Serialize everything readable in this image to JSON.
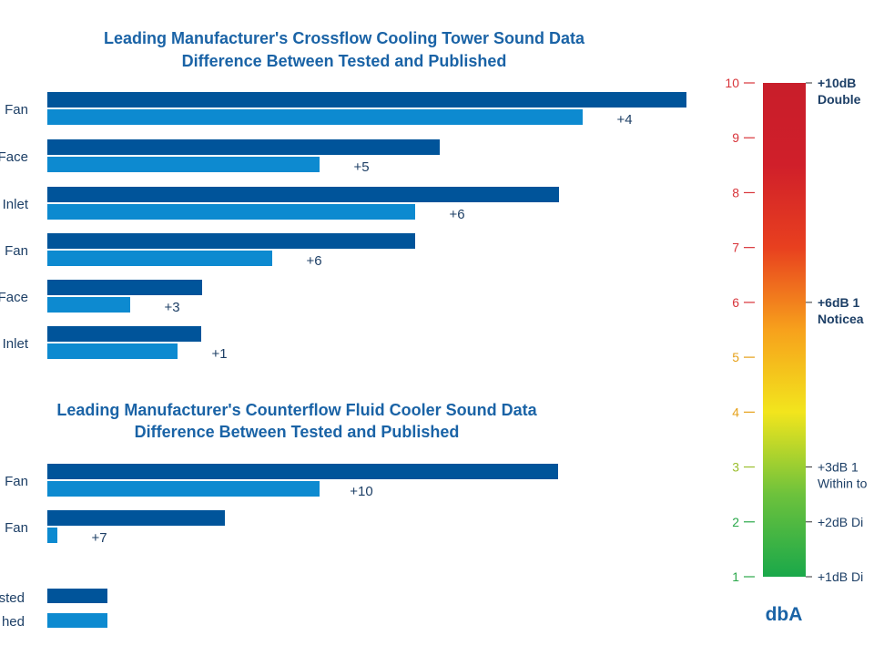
{
  "chart_data": [
    {
      "type": "bar",
      "title": "Leading Manufacturer's Crossflow Cooling Tower Sound Data",
      "subtitle": "Difference Between Tested and Published",
      "categories": [
        "Fan",
        "Face",
        "Inlet",
        "Fan",
        "Face",
        "Inlet"
      ],
      "series": [
        {
          "name": "Tested",
          "values": [
            702,
            431,
            562,
            404,
            170,
            169
          ]
        },
        {
          "name": "Published",
          "values": [
            588,
            299,
            404,
            247,
            91,
            143
          ]
        }
      ],
      "data_labels": [
        "+4",
        "+5",
        "+6",
        "+6",
        "+3",
        "+1"
      ]
    },
    {
      "type": "bar",
      "title": "Leading Manufacturer's Counterflow Fluid Cooler Sound Data",
      "subtitle": "Difference Between Tested and Published",
      "categories": [
        "Fan",
        "Fan"
      ],
      "series": [
        {
          "name": "Tested",
          "values": [
            561,
            195
          ]
        },
        {
          "name": "Published",
          "values": [
            299,
            11
          ]
        }
      ],
      "data_labels": [
        "+10",
        "+7"
      ]
    },
    {
      "type": "table",
      "legend": [
        "sted",
        "hed"
      ],
      "scale": {
        "ticks": [
          1,
          2,
          3,
          4,
          5,
          6,
          7,
          8,
          9,
          10
        ],
        "range": [
          1,
          10
        ],
        "unit": "dbA",
        "gradient": [
          "#1aa84a",
          "#6dc23c",
          "#f2e51d",
          "#f7a11c",
          "#e8401f",
          "#d01f2a",
          "#c81e2a"
        ],
        "notes": [
          {
            "at": 10,
            "lines": [
              "+10dB",
              "Double"
            ],
            "bold": true
          },
          {
            "at": 6,
            "lines": [
              "+6dB  1",
              "Noticea"
            ],
            "bold": true
          },
          {
            "at": 3,
            "lines": [
              "+3dB  1",
              "Within to"
            ],
            "bold": false
          },
          {
            "at": 2,
            "lines": [
              "+2dB Di"
            ],
            "bold": false
          },
          {
            "at": 1,
            "lines": [
              "+1dB Di"
            ],
            "bold": false
          }
        ]
      }
    }
  ],
  "colors": {
    "tested": "#00549a",
    "published": "#0d8ad0",
    "title": "#1a63a6",
    "label": "#1d3f66"
  }
}
